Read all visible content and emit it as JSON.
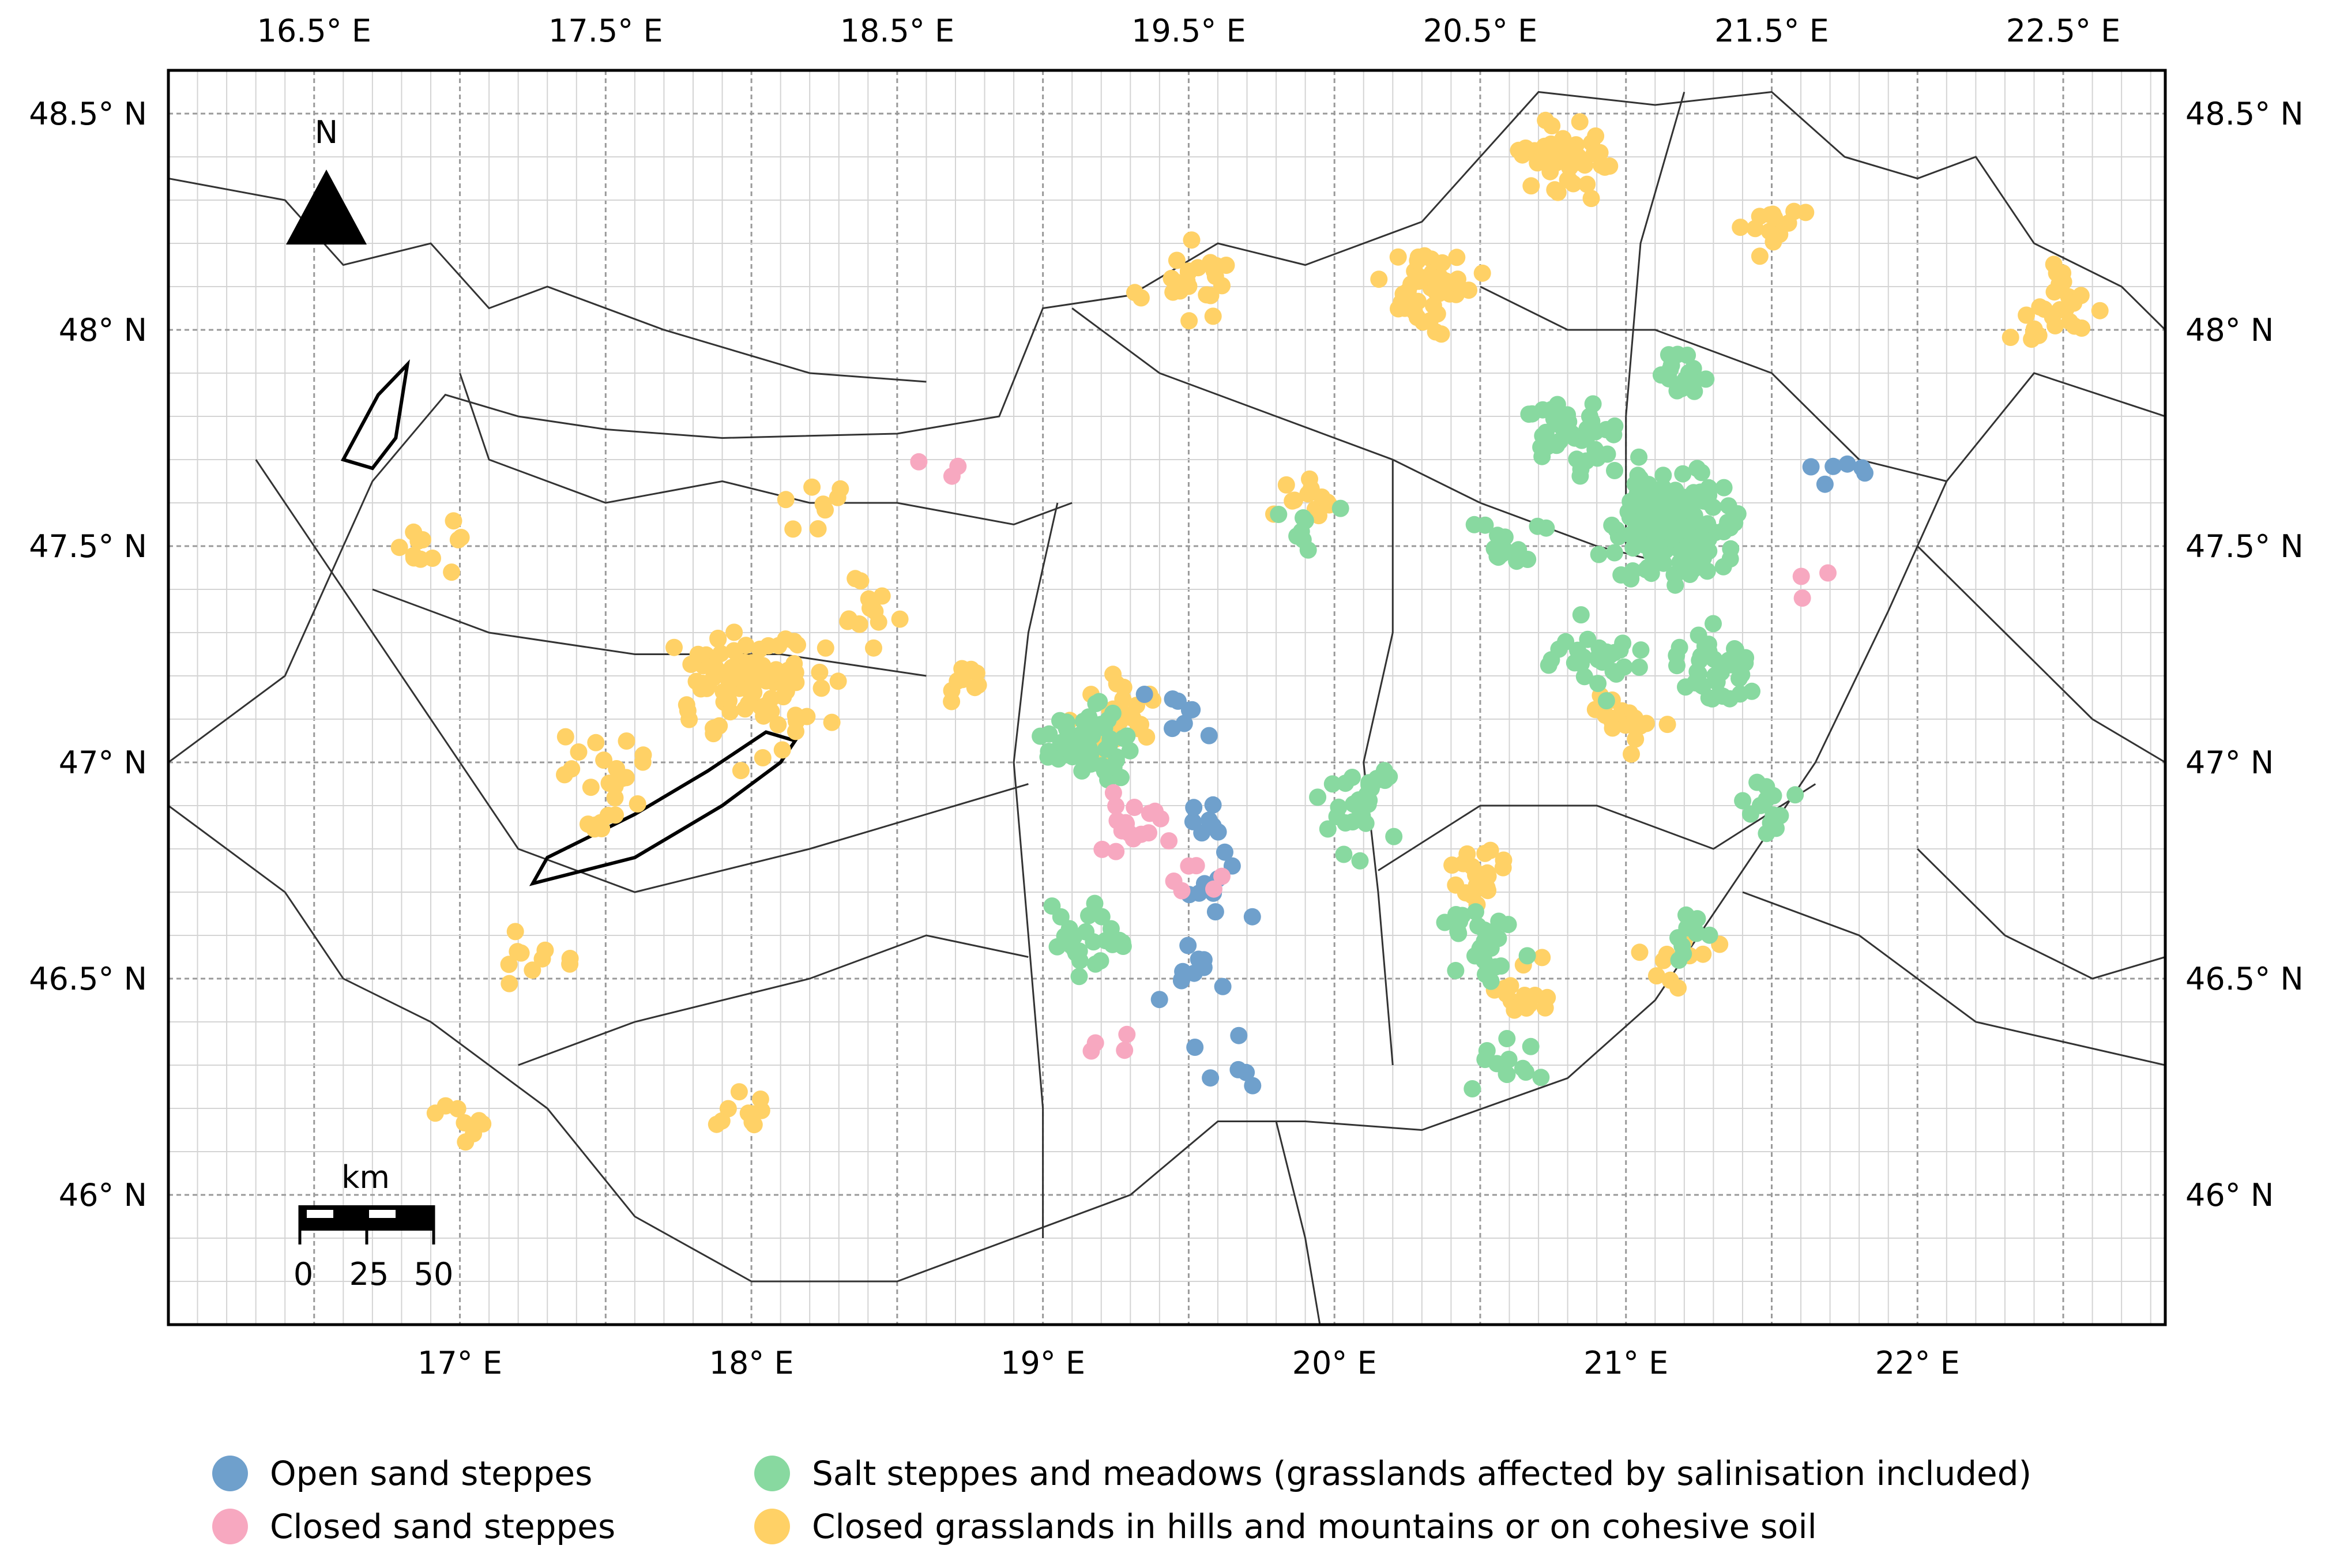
{
  "map": {
    "top_tick_labels": [
      "16.5° E",
      "17.5° E",
      "18.5° E",
      "19.5° E",
      "20.5° E",
      "21.5° E",
      "22.5° E"
    ],
    "bottom_tick_labels": [
      "17° E",
      "18° E",
      "19° E",
      "20° E",
      "21° E",
      "22° E"
    ],
    "left_tick_labels": [
      "48.5° N",
      "48° N",
      "47.5° N",
      "47° N",
      "46.5° N",
      "46° N"
    ],
    "right_tick_labels": [
      "48.5° N",
      "48° N",
      "47.5° N",
      "47° N",
      "46.5° N",
      "46° N"
    ],
    "north_arrow_label": "N",
    "scale_bar": {
      "unit": "km",
      "labels": [
        "0",
        "25",
        "50"
      ]
    },
    "lon_range": [
      16.0,
      22.85
    ],
    "lat_range": [
      45.7,
      48.6
    ],
    "gridlines": true
  },
  "legend": {
    "items": [
      {
        "key": "open_sand",
        "label": "Open sand steppes",
        "color": "#6fa0cc"
      },
      {
        "key": "closed_sand",
        "label": "Closed sand steppes",
        "color": "#f7a8c0"
      },
      {
        "key": "salt",
        "label": "Salt steppes and meadows (grasslands affected by salinisation included)",
        "color": "#88d9a0"
      },
      {
        "key": "closed_grass",
        "label": "Closed grasslands in hills and mountains or on cohesive soil",
        "color": "#ffd166"
      }
    ]
  },
  "clusters": [
    {
      "cat": "closed_grass",
      "lon": 18.0,
      "lat": 47.17,
      "count": 90
    },
    {
      "cat": "closed_grass",
      "lon": 17.5,
      "lat": 46.95,
      "count": 25
    },
    {
      "cat": "closed_grass",
      "lon": 18.4,
      "lat": 47.35,
      "count": 15
    },
    {
      "cat": "closed_grass",
      "lon": 20.8,
      "lat": 48.38,
      "count": 40
    },
    {
      "cat": "closed_grass",
      "lon": 20.3,
      "lat": 48.1,
      "count": 40
    },
    {
      "cat": "closed_grass",
      "lon": 19.5,
      "lat": 48.1,
      "count": 25
    },
    {
      "cat": "closed_grass",
      "lon": 22.5,
      "lat": 48.05,
      "count": 25
    },
    {
      "cat": "closed_grass",
      "lon": 21.5,
      "lat": 48.25,
      "count": 15
    },
    {
      "cat": "closed_grass",
      "lon": 19.25,
      "lat": 47.1,
      "count": 25
    },
    {
      "cat": "closed_grass",
      "lon": 20.5,
      "lat": 46.75,
      "count": 20
    },
    {
      "cat": "closed_grass",
      "lon": 20.65,
      "lat": 46.45,
      "count": 15
    },
    {
      "cat": "closed_grass",
      "lon": 21.0,
      "lat": 47.1,
      "count": 20
    },
    {
      "cat": "closed_grass",
      "lon": 16.9,
      "lat": 47.5,
      "count": 12
    },
    {
      "cat": "closed_grass",
      "lon": 17.25,
      "lat": 46.55,
      "count": 10
    },
    {
      "cat": "closed_grass",
      "lon": 18.0,
      "lat": 46.2,
      "count": 10
    },
    {
      "cat": "closed_grass",
      "lon": 18.7,
      "lat": 47.2,
      "count": 10
    },
    {
      "cat": "closed_grass",
      "lon": 21.2,
      "lat": 46.55,
      "count": 10
    },
    {
      "cat": "closed_grass",
      "lon": 19.9,
      "lat": 47.6,
      "count": 12
    },
    {
      "cat": "closed_grass",
      "lon": 18.2,
      "lat": 47.6,
      "count": 8
    },
    {
      "cat": "closed_grass",
      "lon": 17.0,
      "lat": 46.15,
      "count": 8
    },
    {
      "cat": "salt",
      "lon": 21.15,
      "lat": 47.55,
      "count": 160
    },
    {
      "cat": "salt",
      "lon": 20.85,
      "lat": 47.75,
      "count": 40
    },
    {
      "cat": "salt",
      "lon": 21.3,
      "lat": 47.2,
      "count": 40
    },
    {
      "cat": "salt",
      "lon": 20.9,
      "lat": 47.25,
      "count": 30
    },
    {
      "cat": "salt",
      "lon": 19.15,
      "lat": 47.05,
      "count": 60
    },
    {
      "cat": "salt",
      "lon": 19.15,
      "lat": 46.6,
      "count": 25
    },
    {
      "cat": "salt",
      "lon": 20.1,
      "lat": 46.9,
      "count": 30
    },
    {
      "cat": "salt",
      "lon": 20.5,
      "lat": 46.6,
      "count": 25
    },
    {
      "cat": "salt",
      "lon": 21.5,
      "lat": 46.9,
      "count": 15
    },
    {
      "cat": "salt",
      "lon": 20.6,
      "lat": 47.5,
      "count": 15
    },
    {
      "cat": "salt",
      "lon": 21.2,
      "lat": 47.9,
      "count": 15
    },
    {
      "cat": "salt",
      "lon": 20.6,
      "lat": 46.3,
      "count": 12
    },
    {
      "cat": "salt",
      "lon": 21.2,
      "lat": 46.6,
      "count": 10
    },
    {
      "cat": "salt",
      "lon": 19.9,
      "lat": 47.55,
      "count": 8
    },
    {
      "cat": "open_sand",
      "lon": 19.6,
      "lat": 46.7,
      "count": 8
    },
    {
      "cat": "open_sand",
      "lon": 19.45,
      "lat": 47.1,
      "count": 8
    },
    {
      "cat": "open_sand",
      "lon": 19.5,
      "lat": 46.5,
      "count": 10
    },
    {
      "cat": "open_sand",
      "lon": 19.55,
      "lat": 46.85,
      "count": 8
    },
    {
      "cat": "open_sand",
      "lon": 19.65,
      "lat": 46.3,
      "count": 6
    },
    {
      "cat": "open_sand",
      "lon": 21.75,
      "lat": 47.68,
      "count": 6
    },
    {
      "cat": "closed_sand",
      "lon": 19.3,
      "lat": 46.85,
      "count": 18
    },
    {
      "cat": "closed_sand",
      "lon": 19.55,
      "lat": 46.75,
      "count": 6
    },
    {
      "cat": "closed_sand",
      "lon": 19.2,
      "lat": 46.35,
      "count": 4
    },
    {
      "cat": "closed_sand",
      "lon": 18.7,
      "lat": 47.7,
      "count": 3
    },
    {
      "cat": "closed_sand",
      "lon": 21.65,
      "lat": 47.4,
      "count": 3
    }
  ]
}
